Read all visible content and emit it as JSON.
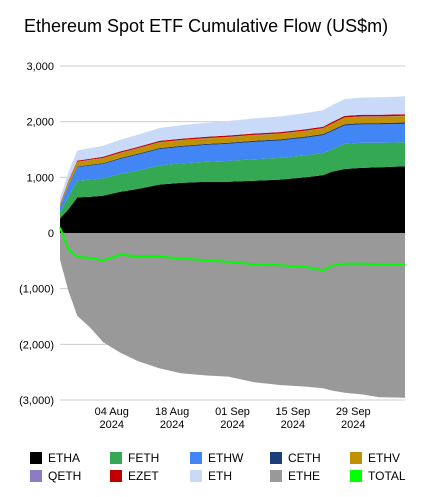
{
  "chart_data": {
    "type": "area",
    "title": "Ethereum Spot ETF Cumulative Flow (US$m)",
    "xlabel": "",
    "ylabel": "",
    "ylim": [
      -3000,
      3000
    ],
    "yticks": [
      3000,
      2000,
      1000,
      0,
      -1000,
      -2000,
      -3000
    ],
    "ytick_labels": [
      "3,000",
      "2,000",
      "1,000",
      "0",
      "(1,000)",
      "(2,000)",
      "(3,000)"
    ],
    "xlim": [
      "2024-07-23",
      "2024-10-11"
    ],
    "xticks": [
      {
        "date": "2024-08-04",
        "line1": "04 Aug",
        "line2": "2024"
      },
      {
        "date": "2024-08-18",
        "line1": "18 Aug",
        "line2": "2024"
      },
      {
        "date": "2024-09-01",
        "line1": "01 Sep",
        "line2": "2024"
      },
      {
        "date": "2024-09-15",
        "line1": "15 Sep",
        "line2": "2024"
      },
      {
        "date": "2024-09-29",
        "line1": "29 Sep",
        "line2": "2024"
      }
    ],
    "dates": [
      "2024-07-23",
      "2024-07-25",
      "2024-07-27",
      "2024-07-30",
      "2024-08-02",
      "2024-08-06",
      "2024-08-10",
      "2024-08-15",
      "2024-08-20",
      "2024-08-26",
      "2024-08-31",
      "2024-09-06",
      "2024-09-12",
      "2024-09-18",
      "2024-09-22",
      "2024-09-24",
      "2024-09-27",
      "2024-10-01",
      "2024-10-05",
      "2024-10-11"
    ],
    "series": [
      {
        "name": "ETHA",
        "color": "#000000",
        "values": [
          260,
          430,
          640,
          650,
          670,
          740,
          790,
          870,
          900,
          920,
          920,
          940,
          960,
          1000,
          1040,
          1100,
          1150,
          1170,
          1180,
          1200
        ]
      },
      {
        "name": "FETH",
        "color": "#34a853",
        "values": [
          110,
          230,
          300,
          310,
          310,
          320,
          330,
          345,
          350,
          360,
          375,
          385,
          390,
          395,
          395,
          400,
          450,
          450,
          440,
          430
        ]
      },
      {
        "name": "ETHW",
        "color": "#4285f4",
        "values": [
          100,
          200,
          240,
          250,
          260,
          270,
          285,
          290,
          295,
          300,
          305,
          310,
          310,
          315,
          320,
          325,
          330,
          330,
          330,
          330
        ]
      },
      {
        "name": "CETH",
        "color": "#1c3f7a",
        "values": [
          5,
          10,
          15,
          15,
          15,
          18,
          18,
          20,
          20,
          20,
          22,
          22,
          22,
          24,
          24,
          24,
          25,
          25,
          25,
          25
        ]
      },
      {
        "name": "ETHV",
        "color": "#bf9000",
        "values": [
          35,
          60,
          80,
          85,
          88,
          90,
          95,
          100,
          100,
          100,
          100,
          100,
          100,
          100,
          100,
          110,
          115,
          115,
          115,
          115
        ]
      },
      {
        "name": "QETH",
        "color": "#8e7cc3",
        "values": [
          2,
          3,
          5,
          5,
          5,
          5,
          5,
          5,
          5,
          5,
          5,
          5,
          5,
          5,
          5,
          5,
          5,
          5,
          5,
          5
        ]
      },
      {
        "name": "EZET",
        "color": "#c00000",
        "values": [
          10,
          15,
          20,
          20,
          20,
          22,
          22,
          24,
          24,
          25,
          25,
          26,
          26,
          26,
          26,
          28,
          28,
          28,
          28,
          28
        ]
      },
      {
        "name": "ETH",
        "color": "#c9daf8",
        "values": [
          100,
          150,
          180,
          190,
          200,
          210,
          220,
          230,
          240,
          250,
          260,
          270,
          280,
          290,
          295,
          300,
          305,
          310,
          315,
          320
        ]
      },
      {
        "name": "ETHE",
        "color": "#999999",
        "values": [
          -480,
          -1050,
          -1490,
          -1700,
          -1960,
          -2150,
          -2300,
          -2430,
          -2520,
          -2560,
          -2580,
          -2680,
          -2730,
          -2760,
          -2790,
          -2830,
          -2870,
          -2900,
          -2950,
          -2960
        ]
      },
      {
        "name": "TOTAL",
        "color": "#00ff00",
        "values": [
          100,
          -300,
          -430,
          -450,
          -490,
          -390,
          -420,
          -420,
          -460,
          -490,
          -520,
          -560,
          -580,
          -610,
          -670,
          -590,
          -550,
          -550,
          -560,
          -560
        ]
      }
    ],
    "legend_position": "bottom",
    "grid": true
  }
}
